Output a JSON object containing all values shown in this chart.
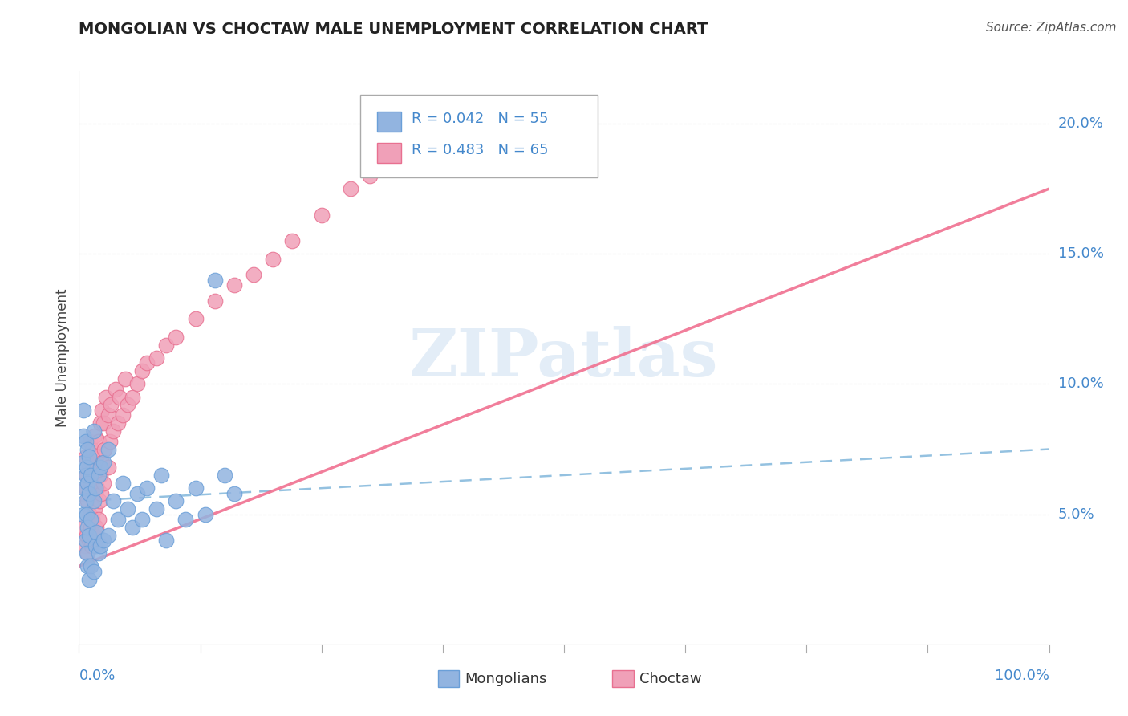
{
  "title": "MONGOLIAN VS CHOCTAW MALE UNEMPLOYMENT CORRELATION CHART",
  "source": "Source: ZipAtlas.com",
  "ylabel": "Male Unemployment",
  "legend_r1": "R = 0.042",
  "legend_n1": "N = 55",
  "legend_r2": "R = 0.483",
  "legend_n2": "N = 65",
  "legend_label1": "Mongolians",
  "legend_label2": "Choctaw",
  "mongolian_color": "#92B4E0",
  "mongolian_edge_color": "#6A9FD8",
  "choctaw_color": "#F0A0B8",
  "choctaw_edge_color": "#E87090",
  "mongolian_line_color": "#88BBDD",
  "choctaw_line_color": "#F07090",
  "watermark_color": "#C8DCF0",
  "grid_color": "#CCCCCC",
  "ytick_color": "#4488CC",
  "xtick_color": "#4488CC",
  "mongolian_x": [
    0.005,
    0.005,
    0.005,
    0.005,
    0.005,
    0.007,
    0.007,
    0.007,
    0.007,
    0.008,
    0.008,
    0.008,
    0.009,
    0.009,
    0.009,
    0.009,
    0.01,
    0.01,
    0.01,
    0.01,
    0.012,
    0.012,
    0.012,
    0.015,
    0.015,
    0.015,
    0.017,
    0.017,
    0.018,
    0.02,
    0.02,
    0.022,
    0.022,
    0.025,
    0.025,
    0.03,
    0.03,
    0.035,
    0.04,
    0.045,
    0.05,
    0.055,
    0.06,
    0.065,
    0.07,
    0.08,
    0.085,
    0.09,
    0.1,
    0.11,
    0.12,
    0.13,
    0.14,
    0.15,
    0.16
  ],
  "mongolian_y": [
    0.05,
    0.06,
    0.07,
    0.08,
    0.09,
    0.04,
    0.055,
    0.065,
    0.078,
    0.035,
    0.05,
    0.068,
    0.03,
    0.045,
    0.062,
    0.075,
    0.025,
    0.042,
    0.058,
    0.072,
    0.03,
    0.048,
    0.065,
    0.028,
    0.055,
    0.082,
    0.038,
    0.06,
    0.043,
    0.035,
    0.065,
    0.038,
    0.068,
    0.04,
    0.07,
    0.042,
    0.075,
    0.055,
    0.048,
    0.062,
    0.052,
    0.045,
    0.058,
    0.048,
    0.06,
    0.052,
    0.065,
    0.04,
    0.055,
    0.048,
    0.06,
    0.05,
    0.14,
    0.065,
    0.058
  ],
  "choctaw_x": [
    0.005,
    0.006,
    0.007,
    0.007,
    0.008,
    0.008,
    0.009,
    0.009,
    0.01,
    0.01,
    0.011,
    0.011,
    0.012,
    0.012,
    0.013,
    0.013,
    0.014,
    0.014,
    0.015,
    0.015,
    0.016,
    0.016,
    0.017,
    0.018,
    0.018,
    0.019,
    0.02,
    0.02,
    0.021,
    0.022,
    0.022,
    0.023,
    0.024,
    0.024,
    0.025,
    0.025,
    0.026,
    0.028,
    0.03,
    0.03,
    0.032,
    0.033,
    0.035,
    0.038,
    0.04,
    0.042,
    0.045,
    0.048,
    0.05,
    0.055,
    0.06,
    0.065,
    0.07,
    0.08,
    0.09,
    0.1,
    0.12,
    0.14,
    0.16,
    0.18,
    0.2,
    0.22,
    0.25,
    0.28,
    0.3
  ],
  "choctaw_y": [
    0.045,
    0.038,
    0.06,
    0.072,
    0.042,
    0.065,
    0.035,
    0.055,
    0.04,
    0.068,
    0.05,
    0.078,
    0.045,
    0.062,
    0.038,
    0.07,
    0.048,
    0.075,
    0.042,
    0.068,
    0.052,
    0.08,
    0.058,
    0.045,
    0.072,
    0.06,
    0.048,
    0.078,
    0.055,
    0.065,
    0.085,
    0.058,
    0.07,
    0.09,
    0.062,
    0.085,
    0.075,
    0.095,
    0.068,
    0.088,
    0.078,
    0.092,
    0.082,
    0.098,
    0.085,
    0.095,
    0.088,
    0.102,
    0.092,
    0.095,
    0.1,
    0.105,
    0.108,
    0.11,
    0.115,
    0.118,
    0.125,
    0.132,
    0.138,
    0.142,
    0.148,
    0.155,
    0.165,
    0.175,
    0.18
  ],
  "xlim": [
    0.0,
    1.0
  ],
  "ylim": [
    0.0,
    0.22
  ],
  "ytick_positions": [
    0.05,
    0.1,
    0.15,
    0.2
  ],
  "ytick_labels": [
    "5.0%",
    "10.0%",
    "15.0%",
    "20.0%"
  ],
  "mongolian_trend_x": [
    0.0,
    1.0
  ],
  "mongolian_trend_y": [
    0.055,
    0.075
  ],
  "choctaw_trend_x": [
    0.0,
    1.0
  ],
  "choctaw_trend_y": [
    0.03,
    0.175
  ]
}
